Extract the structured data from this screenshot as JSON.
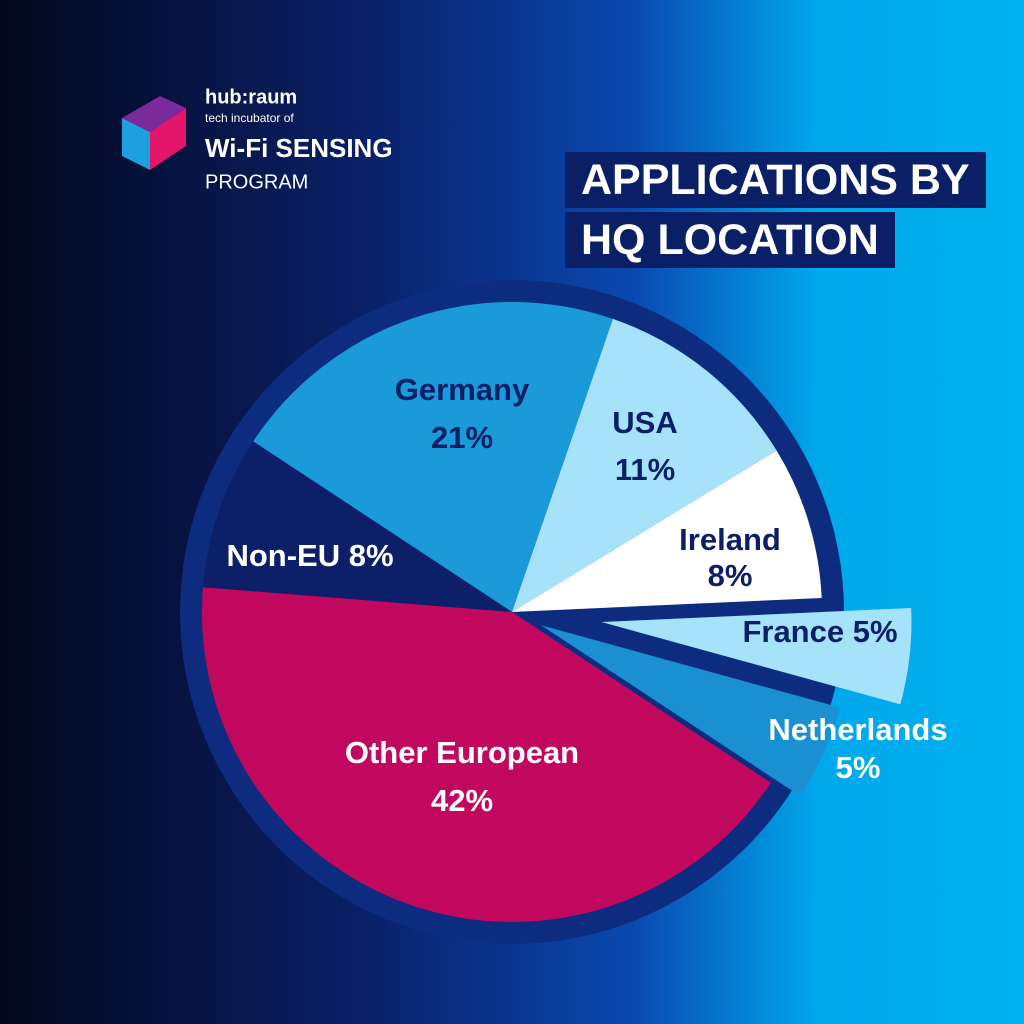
{
  "brand": {
    "name": "hub:raum",
    "tagline": "tech incubator of",
    "program": "Wi-Fi SENSING",
    "program_sub": "PROGRAM"
  },
  "chart_data": {
    "type": "pie",
    "title": "APPLICATIONS BY HQ LOCATION",
    "categories": [
      "Germany",
      "USA",
      "Ireland",
      "France",
      "Netherlands",
      "Other European",
      "Non-EU"
    ],
    "values": [
      21,
      11,
      8,
      5,
      5,
      42,
      8
    ],
    "value_labels": [
      "21%",
      "11%",
      "8%",
      "5%",
      "5%",
      "42%",
      "8%"
    ],
    "colors": [
      "#1a9ad8",
      "#a6e3fa",
      "#ffffff",
      "#a6e3fa",
      "#1a8fd2",
      "#c2085e",
      "#0c1f68"
    ]
  }
}
